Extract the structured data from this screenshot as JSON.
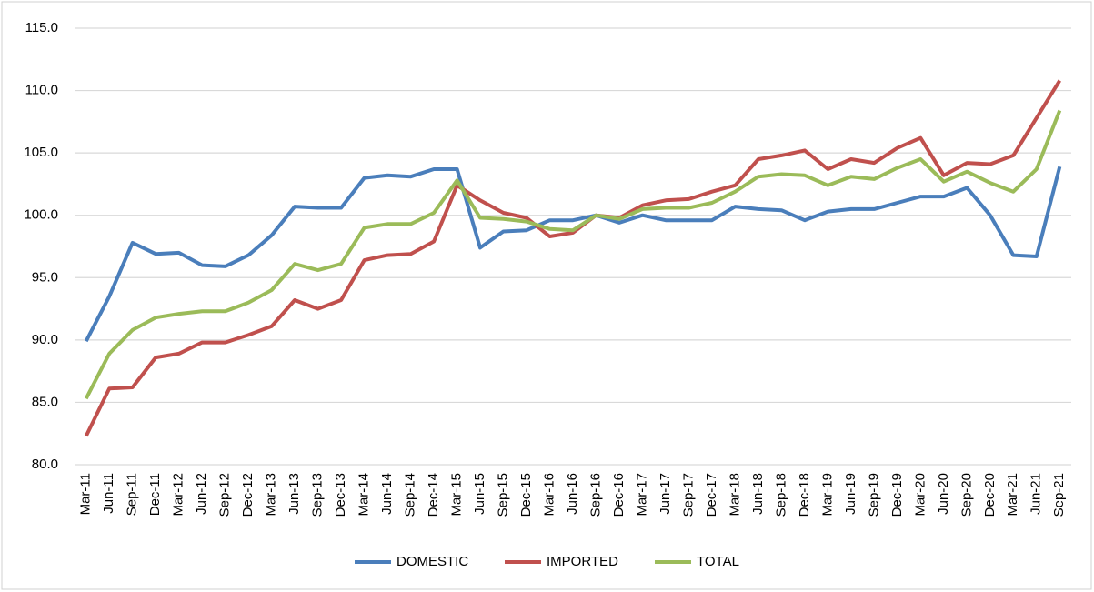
{
  "chart_data": {
    "type": "line",
    "categories": [
      "Mar-11",
      "Jun-11",
      "Sep-11",
      "Dec-11",
      "Mar-12",
      "Jun-12",
      "Sep-12",
      "Dec-12",
      "Mar-13",
      "Jun-13",
      "Sep-13",
      "Dec-13",
      "Mar-14",
      "Jun-14",
      "Sep-14",
      "Dec-14",
      "Mar-15",
      "Jun-15",
      "Sep-15",
      "Dec-15",
      "Mar-16",
      "Jun-16",
      "Sep-16",
      "Dec-16",
      "Mar-17",
      "Jun-17",
      "Sep-17",
      "Dec-17",
      "Mar-18",
      "Jun-18",
      "Sep-18",
      "Dec-18",
      "Mar-19",
      "Jun-19",
      "Sep-19",
      "Dec-19",
      "Mar-20",
      "Jun-20",
      "Sep-20",
      "Dec-20",
      "Mar-21",
      "Jun-21",
      "Sep-21"
    ],
    "series": [
      {
        "name": "DOMESTIC",
        "color": "#4a7ebb",
        "values": [
          89.9,
          93.5,
          97.8,
          96.9,
          97.0,
          96.0,
          95.9,
          96.8,
          98.4,
          100.7,
          100.6,
          100.6,
          103.0,
          103.2,
          103.1,
          103.7,
          103.7,
          97.4,
          98.7,
          98.8,
          99.6,
          99.6,
          100.0,
          99.4,
          100.0,
          99.6,
          99.6,
          99.6,
          100.7,
          100.5,
          100.4,
          99.6,
          100.3,
          100.5,
          100.5,
          101.0,
          101.5,
          101.5,
          102.2,
          100.0,
          96.8,
          96.7,
          103.9
        ]
      },
      {
        "name": "IMPORTED",
        "color": "#c0504d",
        "values": [
          82.3,
          86.1,
          86.2,
          88.6,
          88.9,
          89.8,
          89.8,
          90.4,
          91.1,
          93.2,
          92.5,
          93.2,
          96.4,
          96.8,
          96.9,
          97.9,
          102.4,
          101.2,
          100.2,
          99.8,
          98.3,
          98.6,
          100.0,
          99.8,
          100.8,
          101.2,
          101.3,
          101.9,
          102.4,
          104.5,
          104.8,
          105.2,
          103.7,
          104.5,
          104.2,
          105.4,
          106.2,
          103.2,
          104.2,
          104.1,
          104.8,
          107.8,
          110.8
        ]
      },
      {
        "name": "TOTAL",
        "color": "#9bbb59",
        "values": [
          85.3,
          88.9,
          90.8,
          91.8,
          92.1,
          92.3,
          92.3,
          93.0,
          94.0,
          96.1,
          95.6,
          96.1,
          99.0,
          99.3,
          99.3,
          100.2,
          102.8,
          99.8,
          99.7,
          99.5,
          98.9,
          98.8,
          100.0,
          99.7,
          100.5,
          100.6,
          100.6,
          101.0,
          101.9,
          103.1,
          103.3,
          103.2,
          102.4,
          103.1,
          102.9,
          103.8,
          104.5,
          102.7,
          103.5,
          102.6,
          101.9,
          103.7,
          108.4
        ]
      }
    ],
    "ylim": [
      80,
      115
    ],
    "yticks": [
      {
        "value": 80,
        "label": "80.0"
      },
      {
        "value": 85,
        "label": "85.0"
      },
      {
        "value": 90,
        "label": "90.0"
      },
      {
        "value": 95,
        "label": "95.0"
      },
      {
        "value": 100,
        "label": "100.0"
      },
      {
        "value": 105,
        "label": "105.0"
      },
      {
        "value": 110,
        "label": "110.0"
      },
      {
        "value": 115,
        "label": "115.0"
      }
    ],
    "grid": true,
    "legend": "bottom"
  }
}
